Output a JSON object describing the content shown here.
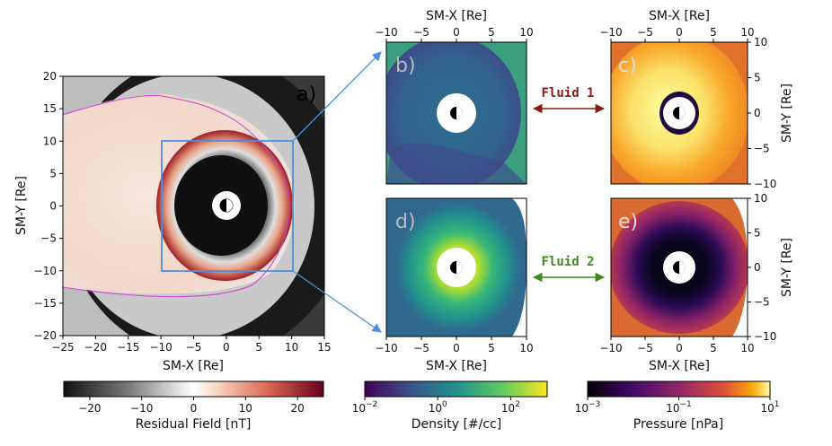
{
  "chart_data": [
    {
      "type": "heatmap",
      "panel": "a)",
      "xlabel": "SM-X [Re]",
      "ylabel": "SM-Y [Re]",
      "xlim": [
        -25,
        15
      ],
      "ylim": [
        -20,
        20
      ],
      "xticks": [
        "−25",
        "−20",
        "−15",
        "−10",
        "−5",
        "0",
        "5",
        "10",
        "15"
      ],
      "yticks": [
        "20",
        "15",
        "10",
        "5",
        "0",
        "−5",
        "−10",
        "−15",
        "−20"
      ],
      "zoom_box": {
        "x": [
          -10,
          10
        ],
        "y": [
          -10,
          10
        ]
      },
      "colorbar": {
        "label": "Residual Field [nT]",
        "range": [
          -25,
          25
        ],
        "ticks": [
          "−20",
          "−10",
          "0",
          "10",
          "20"
        ],
        "colormap": "RdGy_r"
      }
    },
    {
      "type": "heatmap",
      "panel": "b)",
      "quantity": "Density, Fluid 1",
      "xlabel": "SM-X [Re]",
      "xlim": [
        -10,
        10
      ],
      "ylim": [
        -10,
        10
      ],
      "xticks": [
        "−10",
        "−5",
        "0",
        "5",
        "10"
      ]
    },
    {
      "type": "heatmap",
      "panel": "c)",
      "quantity": "Pressure, Fluid 1",
      "xlabel": "SM-X [Re]",
      "ylabel": "SM-Y [Re]",
      "xlim": [
        -10,
        10
      ],
      "ylim": [
        -10,
        10
      ],
      "xticks": [
        "−10",
        "−5",
        "0",
        "5",
        "10"
      ],
      "yticks": [
        "10",
        "5",
        "0",
        "−5",
        "−10"
      ]
    },
    {
      "type": "heatmap",
      "panel": "d)",
      "quantity": "Density, Fluid 2",
      "xlabel": "SM-X [Re]",
      "xlim": [
        -10,
        10
      ],
      "ylim": [
        -10,
        10
      ],
      "xticks": [
        "−10",
        "−5",
        "0",
        "5",
        "10"
      ]
    },
    {
      "type": "heatmap",
      "panel": "e)",
      "quantity": "Pressure, Fluid 2",
      "xlabel": "SM-X [Re]",
      "ylabel": "SM-Y [Re]",
      "xlim": [
        -10,
        10
      ],
      "ylim": [
        -10,
        10
      ],
      "xticks": [
        "−10",
        "−5",
        "0",
        "5",
        "10"
      ],
      "yticks": [
        "10",
        "5",
        "0",
        "−5",
        "−10"
      ]
    }
  ],
  "colorbars": {
    "density": {
      "label": "Density [#/cc]",
      "scale": "log",
      "range_exp": [
        -2,
        3
      ],
      "ticks": [
        {
          "base": "10",
          "exp": "−2"
        },
        {
          "base": "10",
          "exp": "0"
        },
        {
          "base": "10",
          "exp": "2"
        }
      ],
      "colormap": "viridis"
    },
    "pressure": {
      "label": "Pressure [nPa]",
      "scale": "log",
      "range_exp": [
        -3,
        1
      ],
      "ticks": [
        {
          "base": "10",
          "exp": "−3"
        },
        {
          "base": "10",
          "exp": "−1"
        },
        {
          "base": "10",
          "exp": "1"
        }
      ],
      "colormap": "inferno"
    }
  },
  "fluids": {
    "fluid1": {
      "label": "Fluid 1",
      "color": "#8b1a10"
    },
    "fluid2": {
      "label": "Fluid 2",
      "color": "#3d8b1f"
    }
  },
  "colors": {
    "zoom_box": "#4a90e2",
    "magnetopause": "#d040d0"
  }
}
